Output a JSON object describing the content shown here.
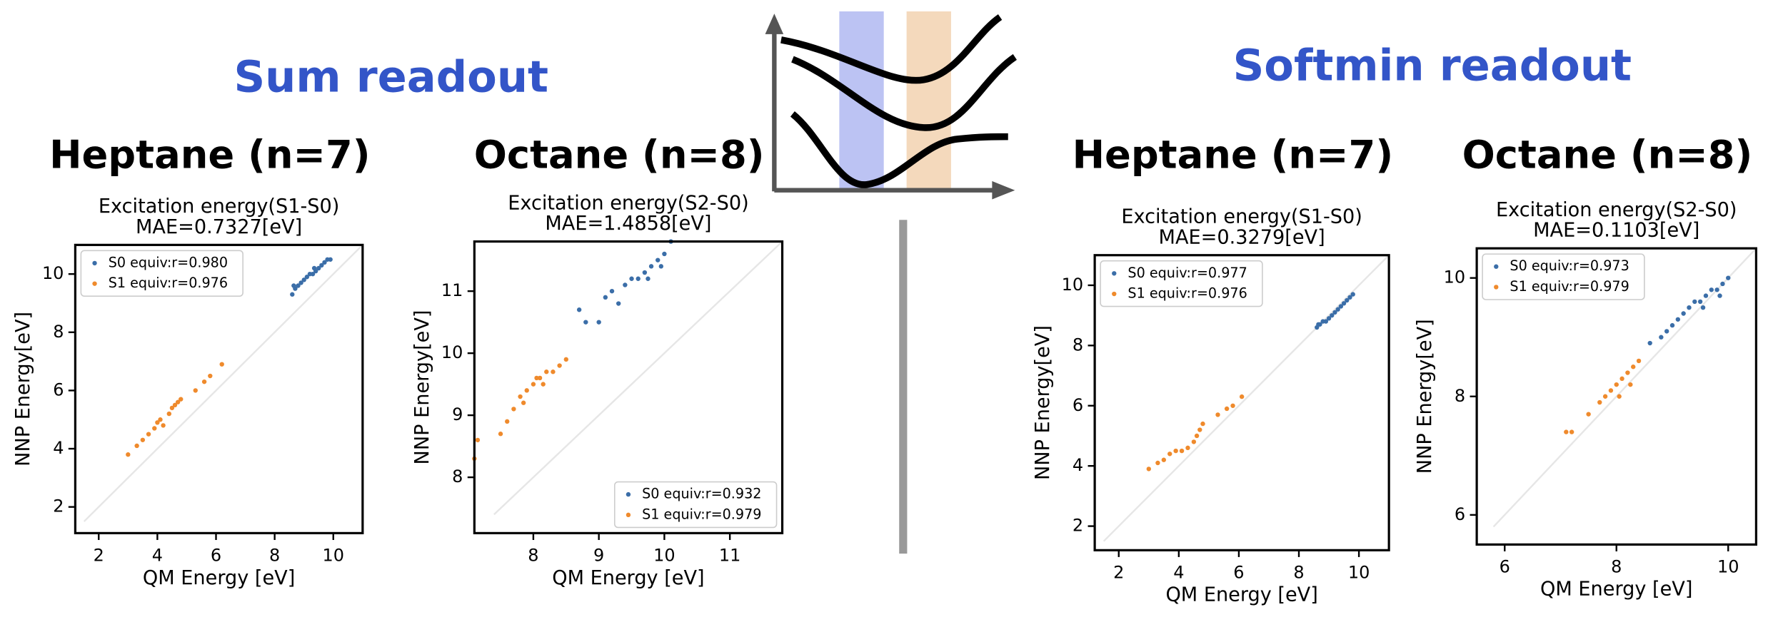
{
  "headers": [
    "Sum readout",
    "Softmin readout"
  ],
  "chart_data": [
    {
      "type": "scatter",
      "title": "Heptane (n=7)",
      "subtitle": [
        "Excitation energy(S1-S0)",
        "MAE=0.7327[eV]"
      ],
      "x_label": "QM Energy [eV]",
      "y_label": "NNP Energy[eV]",
      "legend": "upper left",
      "xlim": [
        1.2,
        11
      ],
      "ylim": [
        1.1,
        11
      ],
      "xticks": [
        2,
        4,
        6,
        8,
        10
      ],
      "yticks": [
        2,
        4,
        6,
        8,
        10
      ],
      "series": [
        {
          "name": "S0 equiv:r=0.980",
          "color": "#3b6ea8",
          "x": [
            8.6,
            8.7,
            8.8,
            8.9,
            9.0,
            9.1,
            9.2,
            9.3,
            9.4,
            9.5,
            9.6,
            9.7,
            9.8,
            9.9,
            8.65,
            9.35
          ],
          "values": [
            9.3,
            9.5,
            9.6,
            9.7,
            9.8,
            9.9,
            10.0,
            10.0,
            10.1,
            10.2,
            10.3,
            10.4,
            10.5,
            10.5,
            9.6,
            10.2
          ]
        },
        {
          "name": "S1 equiv:r=0.976",
          "color": "#ef8a2c",
          "x": [
            3.0,
            3.3,
            3.5,
            3.7,
            3.9,
            4.0,
            4.1,
            4.2,
            4.4,
            4.5,
            4.6,
            4.7,
            4.8,
            5.3,
            5.6,
            5.8,
            6.2
          ],
          "values": [
            3.8,
            4.1,
            4.3,
            4.5,
            4.7,
            4.9,
            5.0,
            4.8,
            5.2,
            5.4,
            5.5,
            5.6,
            5.7,
            6.0,
            6.3,
            6.5,
            6.9
          ]
        }
      ]
    },
    {
      "type": "scatter",
      "title": "Octane (n=8)",
      "subtitle": [
        "Excitation energy(S2-S0)",
        "MAE=1.4858[eV]"
      ],
      "x_label": "QM Energy [eV]",
      "y_label": "NNP Energy[eV]",
      "legend": "lower right",
      "xlim": [
        7.1,
        11.8
      ],
      "ylim": [
        7.1,
        11.8
      ],
      "xticks": [
        8,
        9,
        10,
        11
      ],
      "yticks": [
        8,
        9,
        10,
        11
      ],
      "series": [
        {
          "name": "S0 equiv:r=0.932",
          "color": "#3b6ea8",
          "x": [
            8.7,
            8.8,
            9.0,
            9.1,
            9.2,
            9.3,
            9.4,
            9.5,
            9.6,
            9.7,
            9.8,
            9.9,
            10.0,
            10.1,
            9.75,
            9.95
          ],
          "values": [
            10.7,
            10.5,
            10.5,
            10.9,
            11.0,
            10.8,
            11.1,
            11.2,
            11.2,
            11.3,
            11.4,
            11.5,
            11.6,
            11.8,
            11.2,
            11.4
          ]
        },
        {
          "name": "S1 equiv:r=0.979",
          "color": "#ef8a2c",
          "x": [
            7.1,
            7.15,
            7.5,
            7.6,
            7.7,
            7.8,
            7.9,
            8.0,
            8.05,
            8.1,
            8.2,
            8.3,
            8.4,
            8.5,
            7.85,
            8.15
          ],
          "values": [
            8.3,
            8.6,
            8.7,
            8.9,
            9.1,
            9.3,
            9.4,
            9.5,
            9.6,
            9.6,
            9.7,
            9.7,
            9.8,
            9.9,
            9.2,
            9.5
          ]
        }
      ]
    },
    {
      "type": "scatter",
      "title": "Heptane (n=7)",
      "subtitle": [
        "Excitation energy(S1-S0)",
        "MAE=0.3279[eV]"
      ],
      "x_label": "QM Energy [eV]",
      "y_label": "NNP Energy[eV]",
      "legend": "upper left",
      "xlim": [
        1.2,
        11
      ],
      "ylim": [
        1.2,
        11
      ],
      "xticks": [
        2,
        4,
        6,
        8,
        10
      ],
      "yticks": [
        2,
        4,
        6,
        8,
        10
      ],
      "series": [
        {
          "name": "S0 equiv:r=0.977",
          "color": "#3b6ea8",
          "x": [
            8.6,
            8.7,
            8.8,
            8.9,
            9.0,
            9.1,
            9.2,
            9.3,
            9.4,
            9.5,
            9.6,
            9.7,
            9.8,
            8.65
          ],
          "values": [
            8.6,
            8.7,
            8.8,
            8.8,
            8.9,
            9.0,
            9.1,
            9.2,
            9.3,
            9.4,
            9.5,
            9.6,
            9.7,
            8.7
          ]
        },
        {
          "name": "S1 equiv:r=0.976",
          "color": "#ef8a2c",
          "x": [
            3.0,
            3.3,
            3.5,
            3.7,
            3.9,
            4.1,
            4.3,
            4.5,
            4.6,
            4.7,
            4.8,
            5.3,
            5.6,
            5.8,
            6.1
          ],
          "values": [
            3.9,
            4.1,
            4.2,
            4.4,
            4.5,
            4.5,
            4.6,
            4.8,
            5.0,
            5.2,
            5.4,
            5.7,
            5.9,
            6.0,
            6.3
          ]
        }
      ]
    },
    {
      "type": "scatter",
      "title": "Octane (n=8)",
      "subtitle": [
        "Excitation energy(S2-S0)",
        "MAE=0.1103[eV]"
      ],
      "x_label": "QM Energy [eV]",
      "y_label": "NNP Energy[eV]",
      "legend": "upper left",
      "xlim": [
        5.5,
        10.5
      ],
      "ylim": [
        5.5,
        10.5
      ],
      "xticks": [
        6,
        8,
        10
      ],
      "yticks": [
        6,
        8,
        10
      ],
      "series": [
        {
          "name": "S0 equiv:r=0.973",
          "color": "#3b6ea8",
          "x": [
            8.6,
            8.8,
            8.9,
            9.0,
            9.1,
            9.2,
            9.3,
            9.4,
            9.5,
            9.6,
            9.7,
            9.8,
            9.9,
            10.0,
            9.55,
            9.85
          ],
          "values": [
            8.9,
            9.0,
            9.1,
            9.2,
            9.3,
            9.4,
            9.5,
            9.6,
            9.6,
            9.7,
            9.8,
            9.8,
            9.9,
            10.0,
            9.5,
            9.7
          ]
        },
        {
          "name": "S1 equiv:r=0.979",
          "color": "#ef8a2c",
          "x": [
            7.1,
            7.2,
            7.5,
            7.7,
            7.8,
            7.9,
            8.0,
            8.1,
            8.2,
            8.3,
            8.4,
            8.05,
            8.25
          ],
          "values": [
            7.4,
            7.4,
            7.7,
            7.9,
            8.0,
            8.1,
            8.2,
            8.3,
            8.4,
            8.5,
            8.6,
            8.0,
            8.2
          ]
        }
      ]
    }
  ]
}
